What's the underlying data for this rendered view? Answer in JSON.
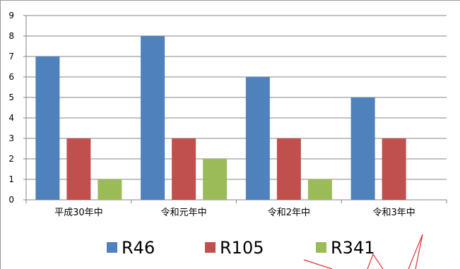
{
  "chart_data": {
    "type": "bar",
    "categories": [
      "平成30年中",
      "令和元年中",
      "令和2年中",
      "令和3年中"
    ],
    "series": [
      {
        "name": "R46",
        "values": [
          7,
          8,
          6,
          5
        ],
        "color": "#4F81BD"
      },
      {
        "name": "R105",
        "values": [
          3,
          3,
          3,
          3
        ],
        "color": "#C0504D"
      },
      {
        "name": "R341",
        "values": [
          1,
          2,
          1,
          0
        ],
        "color": "#9BBB59"
      }
    ],
    "yticks": [
      0,
      1,
      2,
      3,
      4,
      5,
      6,
      7,
      8,
      9
    ],
    "ylim": [
      0,
      9
    ],
    "grid": true,
    "legend_position": "bottom"
  }
}
